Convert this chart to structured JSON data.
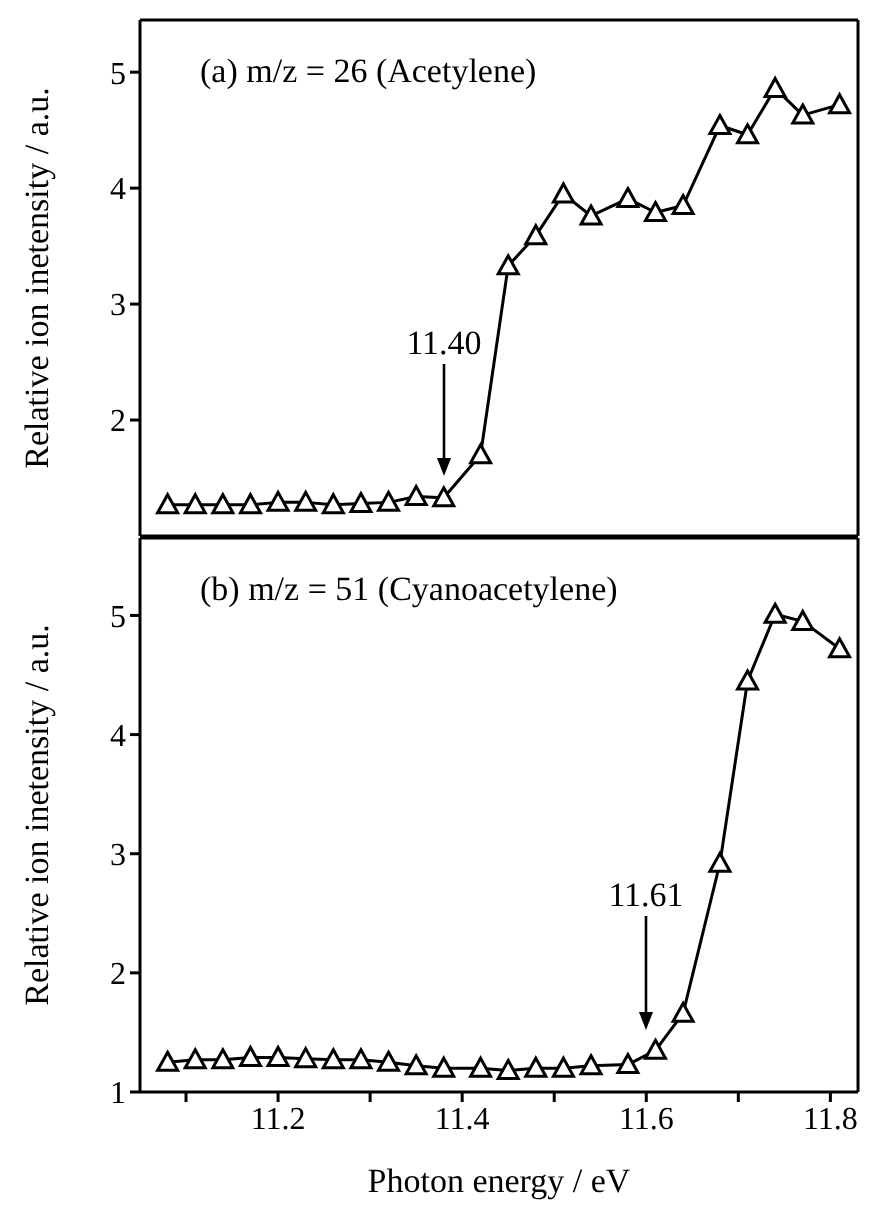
{
  "chart_data": [
    {
      "type": "line",
      "title": "(a)  m/z = 26 (Acetylene)",
      "ylabel": "Relative ion inetensity / a.u.",
      "marker": "triangle",
      "line_style": "solid",
      "tick_labels": "y",
      "x": [
        11.08,
        11.11,
        11.14,
        11.17,
        11.2,
        11.23,
        11.26,
        11.29,
        11.32,
        11.35,
        11.38,
        11.42,
        11.45,
        11.48,
        11.51,
        11.54,
        11.58,
        11.61,
        11.64,
        11.68,
        11.71,
        11.74,
        11.77,
        11.81
      ],
      "series": [
        {
          "color": "#000000",
          "values": [
            1.27,
            1.27,
            1.27,
            1.27,
            1.29,
            1.29,
            1.27,
            1.28,
            1.29,
            1.34,
            1.33,
            1.7,
            3.33,
            3.59,
            3.95,
            3.76,
            3.91,
            3.79,
            3.85,
            4.54,
            4.46,
            4.86,
            4.63,
            4.72
          ]
        }
      ],
      "xlim": [
        11.05,
        11.83
      ],
      "ylim": [
        1,
        5.45
      ],
      "yticks": [
        2,
        3,
        4,
        5
      ],
      "annotations": [
        "11.40"
      ]
    },
    {
      "type": "line",
      "title": "(b)  m/z = 51 (Cyanoacetylene)",
      "xlabel": "Photon energy / eV",
      "ylabel": "Relative ion inetensity / a.u.",
      "marker": "triangle",
      "line_style": "solid",
      "x": [
        11.08,
        11.11,
        11.14,
        11.17,
        11.2,
        11.23,
        11.26,
        11.29,
        11.32,
        11.35,
        11.38,
        11.42,
        11.45,
        11.48,
        11.51,
        11.54,
        11.58,
        11.61,
        11.64,
        11.68,
        11.71,
        11.74,
        11.77,
        11.81
      ],
      "series": [
        {
          "color": "#000000",
          "values": [
            1.25,
            1.27,
            1.27,
            1.29,
            1.29,
            1.28,
            1.27,
            1.27,
            1.25,
            1.22,
            1.2,
            1.2,
            1.18,
            1.2,
            1.2,
            1.22,
            1.23,
            1.35,
            1.66,
            2.92,
            4.45,
            5.01,
            4.95,
            4.72
          ]
        }
      ],
      "xlim": [
        11.05,
        11.83
      ],
      "xticks": [
        {
          "value": 11.1,
          "label": null
        },
        11.2,
        {
          "value": 11.3,
          "label": null
        },
        11.4,
        {
          "value": 11.5,
          "label": null
        },
        11.6,
        {
          "value": 11.7,
          "label": null
        },
        11.8
      ],
      "ylim": [
        1,
        5.65
      ],
      "yticks": [
        1,
        2,
        3,
        4,
        5
      ],
      "annotations": [
        "11.61"
      ]
    }
  ]
}
